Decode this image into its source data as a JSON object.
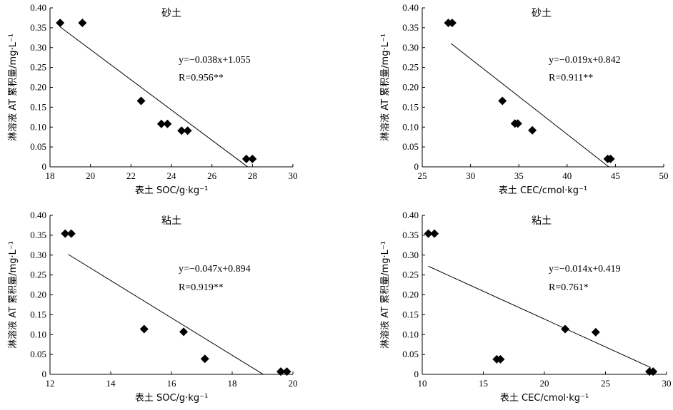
{
  "chart_data": [
    {
      "type": "scatter",
      "title": "砂土",
      "xlabel": "表土 SOC/g·kg⁻¹",
      "ylabel": "淋溶液 AT 累积量/mg·L⁻¹",
      "xlim": [
        18,
        30
      ],
      "ylim": [
        0,
        0.4
      ],
      "xticks": [
        "18",
        "20",
        "22",
        "24",
        "26",
        "28",
        "30"
      ],
      "yticks": [
        "0",
        "0.05",
        "0.10",
        "0.15",
        "0.20",
        "0.25",
        "0.30",
        "0.35",
        "0.40"
      ],
      "points": [
        [
          18.5,
          0.362
        ],
        [
          19.6,
          0.362
        ],
        [
          22.5,
          0.166
        ],
        [
          23.5,
          0.108
        ],
        [
          23.8,
          0.108
        ],
        [
          24.5,
          0.091
        ],
        [
          24.8,
          0.091
        ],
        [
          27.7,
          0.02
        ],
        [
          28.0,
          0.02
        ]
      ],
      "fit": {
        "slope": -0.038,
        "intercept": 1.055,
        "x_range": [
          18.5,
          27.76
        ]
      },
      "equation": "y=−0.038x+1.055",
      "r_text": "R=0.956**"
    },
    {
      "type": "scatter",
      "title": "砂土",
      "xlabel": "表土 CEC/cmol·kg⁻¹",
      "ylabel": "淋溶液 AT 累积量/mg·L⁻¹",
      "xlim": [
        25,
        50
      ],
      "ylim": [
        0,
        0.4
      ],
      "xticks": [
        "25",
        "30",
        "35",
        "40",
        "45",
        "50"
      ],
      "yticks": [
        "0",
        "0.05",
        "0.10",
        "0.15",
        "0.20",
        "0.25",
        "0.30",
        "0.35",
        "0.40"
      ],
      "points": [
        [
          27.7,
          0.362
        ],
        [
          28.1,
          0.362
        ],
        [
          33.3,
          0.166
        ],
        [
          34.6,
          0.109
        ],
        [
          34.9,
          0.109
        ],
        [
          36.4,
          0.092
        ],
        [
          44.2,
          0.02
        ],
        [
          44.5,
          0.02
        ]
      ],
      "fit": {
        "slope": -0.019,
        "intercept": 0.842,
        "x_range": [
          28.0,
          44.3
        ]
      },
      "equation": "y=−0.019x+0.842",
      "r_text": "R=0.911**"
    },
    {
      "type": "scatter",
      "title": "粘土",
      "xlabel": "表土 SOC/g·kg⁻¹",
      "ylabel": "淋溶液 AT 累积量/mg·L⁻¹",
      "xlim": [
        12,
        20
      ],
      "ylim": [
        0,
        0.4
      ],
      "xticks": [
        "12",
        "14",
        "16",
        "18",
        "20"
      ],
      "yticks": [
        "0",
        "0.05",
        "0.10",
        "0.15",
        "0.20",
        "0.25",
        "0.30",
        "0.35",
        "0.40"
      ],
      "points": [
        [
          12.5,
          0.354
        ],
        [
          12.7,
          0.354
        ],
        [
          15.1,
          0.114
        ],
        [
          16.4,
          0.107
        ],
        [
          17.1,
          0.039
        ],
        [
          19.6,
          0.007
        ],
        [
          19.8,
          0.007
        ]
      ],
      "fit": {
        "slope": -0.047,
        "intercept": 0.894,
        "x_range": [
          12.6,
          19.02
        ]
      },
      "equation": "y=−0.047x+0.894",
      "r_text": "R=0.919**"
    },
    {
      "type": "scatter",
      "title": "粘土",
      "xlabel": "表土 CEC/cmol·kg⁻¹",
      "ylabel": "淋溶液 AT 累积量/mg·L⁻¹",
      "xlim": [
        10,
        30
      ],
      "ylim": [
        0,
        0.4
      ],
      "xticks": [
        "10",
        "15",
        "20",
        "25",
        "30"
      ],
      "yticks": [
        "0",
        "0.05",
        "0.10",
        "0.15",
        "0.20",
        "0.25",
        "0.30",
        "0.35",
        "0.40"
      ],
      "points": [
        [
          10.5,
          0.354
        ],
        [
          11.0,
          0.354
        ],
        [
          16.1,
          0.038
        ],
        [
          16.4,
          0.038
        ],
        [
          21.7,
          0.114
        ],
        [
          24.2,
          0.106
        ],
        [
          28.6,
          0.007
        ],
        [
          28.9,
          0.007
        ]
      ],
      "fit": {
        "slope": -0.014,
        "intercept": 0.419,
        "x_range": [
          10.5,
          28.7
        ]
      },
      "equation": "y=−0.014x+0.419",
      "r_text": "R=0.761*"
    }
  ]
}
